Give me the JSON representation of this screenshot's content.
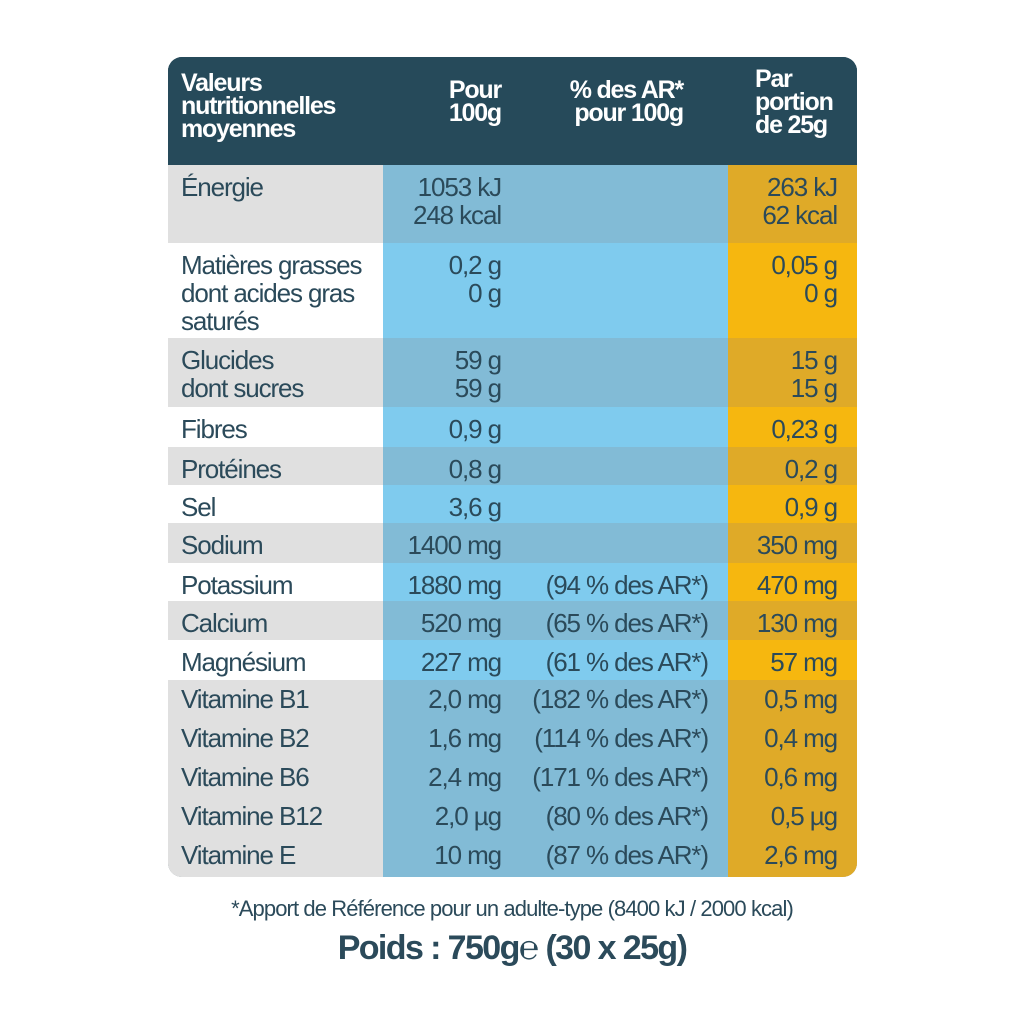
{
  "header": {
    "col_label": "Valeurs\nnutritionnelles\nmoyennes",
    "col_per100": "Pour\n100g",
    "col_ar": "% des AR*\npour 100g",
    "col_portion": "Par\nportion\nde 25g"
  },
  "rows": [
    {
      "label": "Énergie",
      "per100": "1053 kJ\n248 kcal",
      "ar": "",
      "portion": "263 kJ\n62 kcal"
    },
    {
      "label": "Matières grasses\ndont acides gras\nsaturés",
      "per100": "0,2 g\n0 g",
      "ar": "",
      "portion": "0,05 g\n0 g"
    },
    {
      "label": "Glucides\ndont sucres",
      "per100": "59 g\n59 g",
      "ar": "",
      "portion": "15 g\n15 g"
    },
    {
      "label": "Fibres",
      "per100": "0,9 g",
      "ar": "",
      "portion": "0,23 g"
    },
    {
      "label": "Protéines",
      "per100": "0,8 g",
      "ar": "",
      "portion": "0,2 g"
    },
    {
      "label": "Sel",
      "per100": "3,6 g",
      "ar": "",
      "portion": "0,9 g"
    },
    {
      "label": "Sodium",
      "per100": "1400 mg",
      "ar": "",
      "portion": "350 mg"
    },
    {
      "label": "Potassium",
      "per100": "1880 mg",
      "ar": "(94 % des AR*)",
      "portion": "470 mg"
    },
    {
      "label": "Calcium",
      "per100": "520 mg",
      "ar": "(65 % des AR*)",
      "portion": "130 mg"
    },
    {
      "label": "Magnésium",
      "per100": "227 mg",
      "ar": "(61 % des AR*)",
      "portion": "57 mg"
    },
    {
      "label": "Vitamine B1\nVitamine B2\nVitamine B6\nVitamine B12\nVitamine E",
      "per100": "2,0 mg\n1,6 mg\n2,4 mg\n2,0 µg\n10 mg",
      "ar": "(182 % des AR*)\n(114 % des AR*)\n(171 % des AR*)\n(80 % des AR*)\n(87 % des AR*)",
      "portion": "0,5 mg\n0,4 mg\n0,6 mg\n0,5 µg\n2,6 mg"
    }
  ],
  "footnote": "*Apport de Référence pour un adulte-type (8400 kJ / 2000 kcal)",
  "weight": {
    "label": "Poids : 750g",
    "e_mark": "℮",
    "detail": "(30 x 25g)"
  },
  "colors": {
    "header": "#264a5a",
    "text": "#2b4a5a",
    "blue": "#7fcbee",
    "blue_shaded": "#82bbd6",
    "gold": "#f6b70f",
    "gold_shaded": "#dfaa28"
  }
}
